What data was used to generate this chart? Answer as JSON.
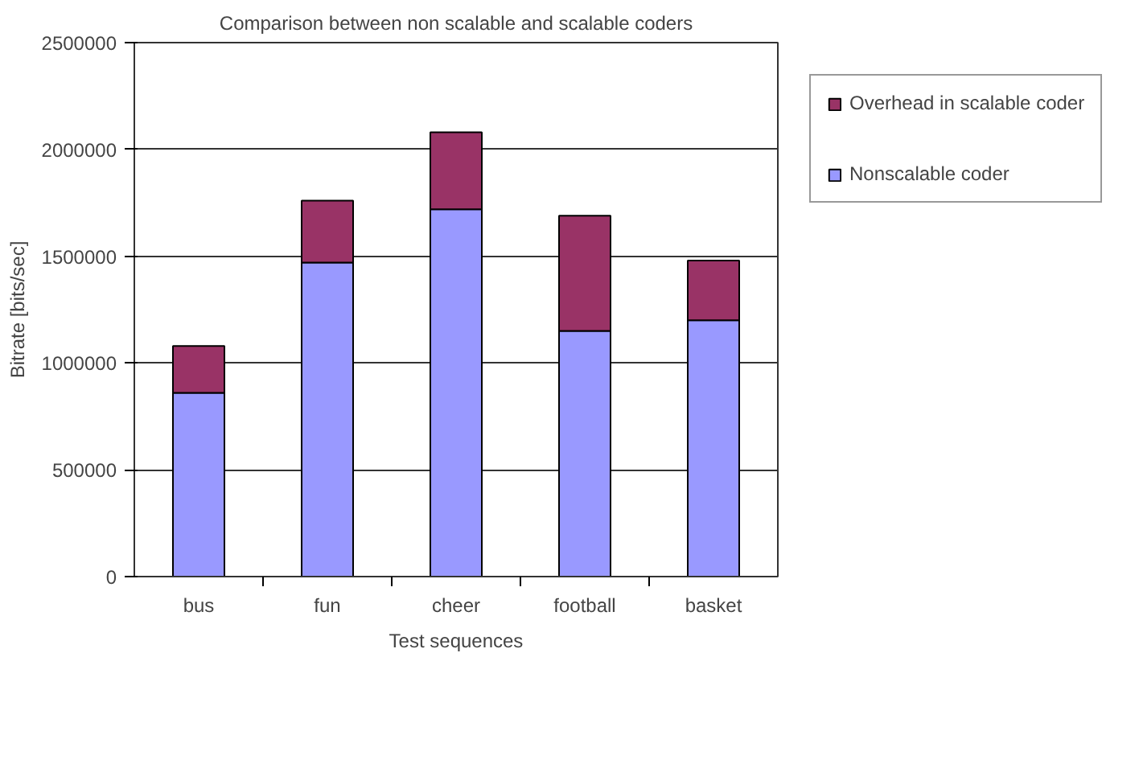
{
  "chart_data": {
    "type": "bar",
    "stacked": true,
    "title": "Comparison between non scalable and scalable coders",
    "xlabel": "Test sequences",
    "ylabel": "Bitrate [bits/sec]",
    "categories": [
      "bus",
      "fun",
      "cheer",
      "football",
      "basket"
    ],
    "series": [
      {
        "name": "Nonscalable coder",
        "color": "#9999ff",
        "values": [
          860000,
          1470000,
          1720000,
          1150000,
          1200000
        ]
      },
      {
        "name": "Overhead in scalable coder",
        "color": "#993366",
        "values": [
          220000,
          290000,
          360000,
          540000,
          280000
        ]
      }
    ],
    "ylim": [
      0,
      2500000
    ],
    "yticks": [
      0,
      500000,
      1000000,
      1500000,
      2000000,
      2500000
    ],
    "grid": "y",
    "legend": "right"
  }
}
